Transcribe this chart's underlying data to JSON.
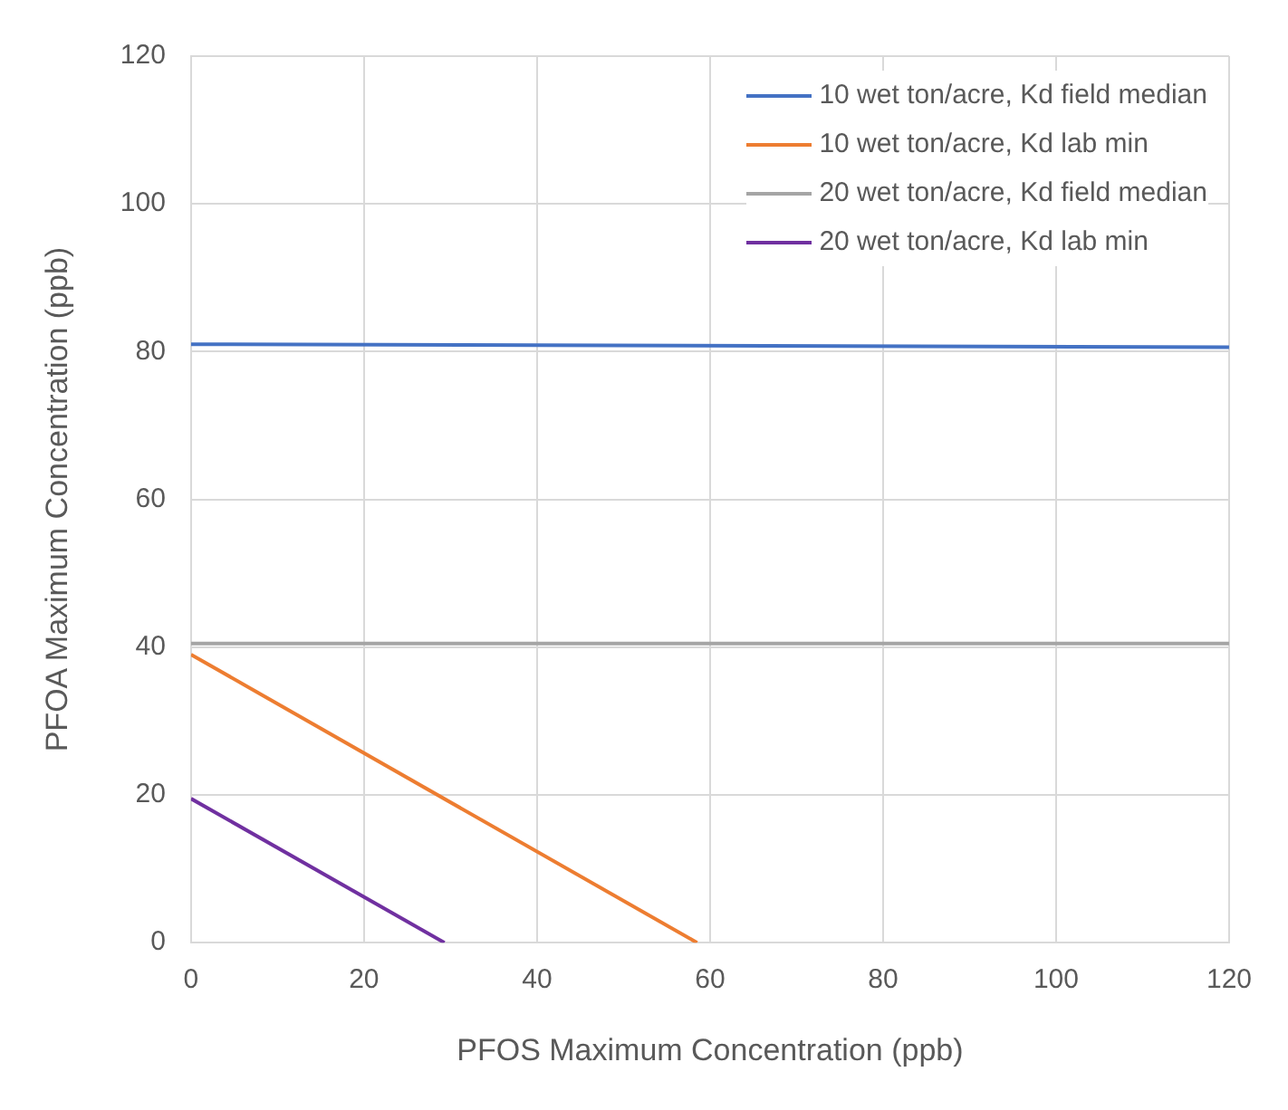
{
  "chart_data": {
    "type": "line",
    "xlabel": "PFOS Maximum Concentration (ppb)",
    "ylabel": "PFOA Maximum Concentration (ppb)",
    "xlim": [
      0,
      120
    ],
    "ylim": [
      0,
      120
    ],
    "xticks": [
      0,
      20,
      40,
      60,
      80,
      100,
      120
    ],
    "yticks": [
      0,
      20,
      40,
      60,
      80,
      100,
      120
    ],
    "grid": true,
    "legend": "top right",
    "marker": "none",
    "series": [
      {
        "name": "10 wet ton/acre, Kd field median",
        "color": "#4472c4",
        "x": [
          0,
          120
        ],
        "values": [
          81,
          80.6
        ]
      },
      {
        "name": "10 wet ton/acre, Kd lab min",
        "color": "#ed7d31",
        "x": [
          0,
          58.5
        ],
        "values": [
          39,
          0
        ]
      },
      {
        "name": "20 wet ton/acre, Kd field median",
        "color": "#a5a5a5",
        "x": [
          0,
          120
        ],
        "values": [
          40.5,
          40.5
        ]
      },
      {
        "name": "20 wet ton/acre, Kd lab min",
        "color": "#7030a0",
        "x": [
          0,
          29.3
        ],
        "values": [
          19.5,
          0
        ]
      }
    ]
  }
}
